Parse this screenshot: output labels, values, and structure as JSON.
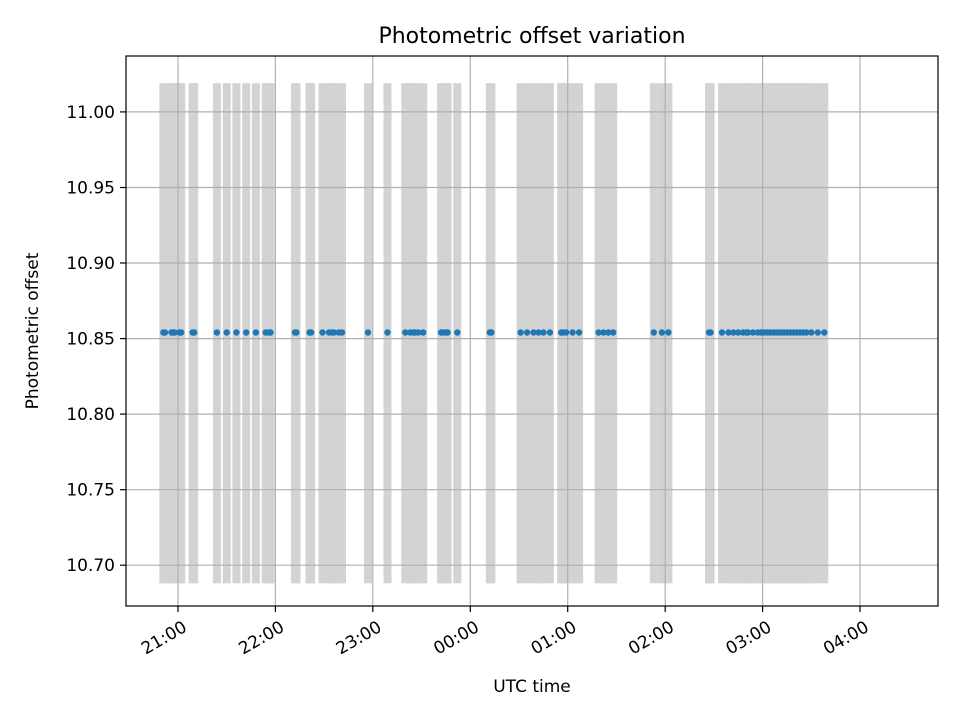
{
  "chart_data": {
    "type": "scatter",
    "title": "Photometric offset variation",
    "xlabel": "UTC time",
    "ylabel": "Photometric offset",
    "x_tick_labels": [
      "21:00",
      "22:00",
      "23:00",
      "00:00",
      "01:00",
      "02:00",
      "03:00",
      "04:00"
    ],
    "x_tick_values": [
      1260,
      1320,
      1380,
      1440,
      1500,
      1560,
      1620,
      1680
    ],
    "xlim": [
      1228,
      1728
    ],
    "y_tick_labels": [
      "10.70",
      "10.75",
      "10.80",
      "10.85",
      "10.90",
      "10.95",
      "11.00"
    ],
    "y_tick_values": [
      10.7,
      10.75,
      10.8,
      10.85,
      10.9,
      10.95,
      11.0
    ],
    "ylim": [
      10.673,
      11.037
    ],
    "grid": true,
    "point_color": "#1f77b4",
    "band_color": "#d3d3d3",
    "band_range": [
      10.688,
      11.019
    ],
    "series": [
      {
        "offset": 10.854,
        "times": [
          1251,
          1252,
          1256,
          1257,
          1258,
          1261,
          1262,
          1269,
          1270,
          1284,
          1290,
          1296,
          1302,
          1308,
          1314,
          1316,
          1317,
          1332,
          1333,
          1341,
          1342,
          1349,
          1353,
          1355,
          1356,
          1359,
          1361,
          1377,
          1389,
          1400,
          1403,
          1405,
          1406,
          1408,
          1411,
          1422,
          1423,
          1425,
          1426,
          1432,
          1452,
          1453,
          1471,
          1475,
          1479,
          1482,
          1485,
          1489,
          1496,
          1497,
          1499,
          1503,
          1507,
          1519,
          1522,
          1525,
          1528,
          1553,
          1558,
          1562,
          1587,
          1588,
          1595,
          1599,
          1602,
          1605,
          1608,
          1610,
          1611,
          1614,
          1617,
          1619,
          1621,
          1623,
          1625,
          1627,
          1629,
          1631,
          1633,
          1635,
          1637,
          1639,
          1641,
          1643,
          1645,
          1647,
          1650,
          1654,
          1658
        ]
      }
    ]
  }
}
